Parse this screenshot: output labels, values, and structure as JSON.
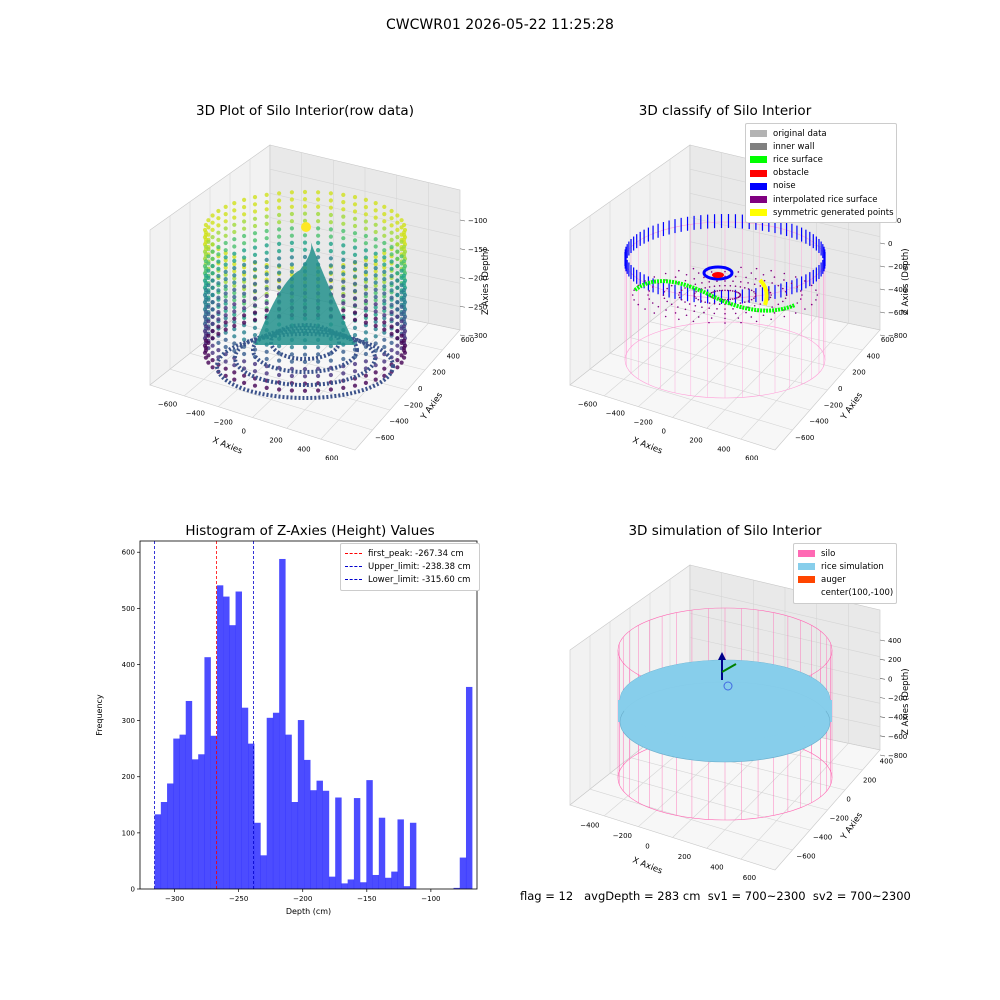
{
  "figure": {
    "suptitle": "CWCWR01 2026-05-22 11:25:28",
    "footer": "flag = 12   avgDepth = 283 cm  sv1 = 700~2300  sv2 = 700~2300"
  },
  "raw_plot": {
    "title": "3D Plot of Silo Interior(row data)",
    "xlabel": "X Axies",
    "ylabel": "Y Axies",
    "zlabel": "Z Axies (Depth)",
    "x_ticks": [
      "−600",
      "−400",
      "−200",
      "0",
      "200",
      "400",
      "600"
    ],
    "y_ticks": [
      "−600",
      "−400",
      "−200",
      "0",
      "200",
      "400",
      "600"
    ],
    "z_ticks": [
      "−100",
      "−150",
      "−200",
      "−250",
      "−300"
    ]
  },
  "classify_plot": {
    "title": "3D classify of Silo Interior",
    "xlabel": "X Axies",
    "ylabel": "Y Axies",
    "zlabel": "Z Axies (Depth)",
    "x_ticks": [
      "−600",
      "−400",
      "−200",
      "0",
      "200",
      "400",
      "600"
    ],
    "y_ticks": [
      "−600",
      "−400",
      "−200",
      "0",
      "200",
      "400",
      "600"
    ],
    "z_ticks": [
      "200",
      "0",
      "−200",
      "−400",
      "−600",
      "−800"
    ],
    "legend": [
      {
        "label": "original data",
        "color": "#b3b3b3"
      },
      {
        "label": "inner wall",
        "color": "#808080"
      },
      {
        "label": "rice surface",
        "color": "#00ff00"
      },
      {
        "label": "obstacle",
        "color": "#ff0000"
      },
      {
        "label": "noise",
        "color": "#0000ff"
      },
      {
        "label": "interpolated rice surface",
        "color": "#800080"
      },
      {
        "label": "symmetric generated points",
        "color": "#ffff00"
      }
    ]
  },
  "sim_plot": {
    "title": "3D simulation of Silo Interior",
    "xlabel": "X Axies",
    "ylabel": "Y Axies",
    "zlabel": "Z Axies (Depth)",
    "x_ticks": [
      "−400",
      "−200",
      "0",
      "200",
      "400",
      "600"
    ],
    "y_ticks": [
      "−600",
      "−400",
      "−200",
      "0",
      "200",
      "400"
    ],
    "z_ticks": [
      "400",
      "200",
      "0",
      "−200",
      "−400",
      "−600",
      "−800"
    ],
    "legend": [
      {
        "label": "silo",
        "color": "#ff69b4"
      },
      {
        "label": "rice simulation",
        "color": "#87ceeb"
      },
      {
        "label": "auger",
        "color": "#ff4500"
      },
      {
        "label": "center(100,-100)",
        "color": "#ffffff"
      }
    ]
  },
  "chart_data": {
    "type": "bar",
    "title": "Histogram of Z-Axies (Height) Values",
    "xlabel": "Depth (cm)",
    "ylabel": "Frequency",
    "xlim": [
      -327,
      -64
    ],
    "ylim": [
      0,
      620
    ],
    "x_ticks": [
      -300,
      -250,
      -200,
      -150,
      -100
    ],
    "y_ticks": [
      0,
      100,
      200,
      300,
      400,
      500,
      600
    ],
    "bin_start": -315.6,
    "bin_width": 4.86,
    "bar_color": "#0000ff",
    "values": [
      133,
      155,
      188,
      268,
      275,
      335,
      231,
      240,
      413,
      273,
      541,
      521,
      470,
      530,
      323,
      259,
      118,
      60,
      305,
      314,
      588,
      275,
      155,
      301,
      230,
      176,
      193,
      175,
      22,
      163,
      10,
      17,
      162,
      12,
      194,
      25,
      127,
      20,
      31,
      124,
      5,
      118,
      0,
      0,
      0,
      0,
      0,
      0,
      2,
      56,
      360
    ],
    "vlines": [
      {
        "label": "first_peak: -267.34 cm",
        "x": -267.34,
        "color": "#ff0000"
      },
      {
        "label": "Upper_limit: -238.38 cm",
        "x": -238.38,
        "color": "#0000cc"
      },
      {
        "label": "Lower_limit: -315.60 cm",
        "x": -315.6,
        "color": "#0000cc"
      }
    ]
  }
}
